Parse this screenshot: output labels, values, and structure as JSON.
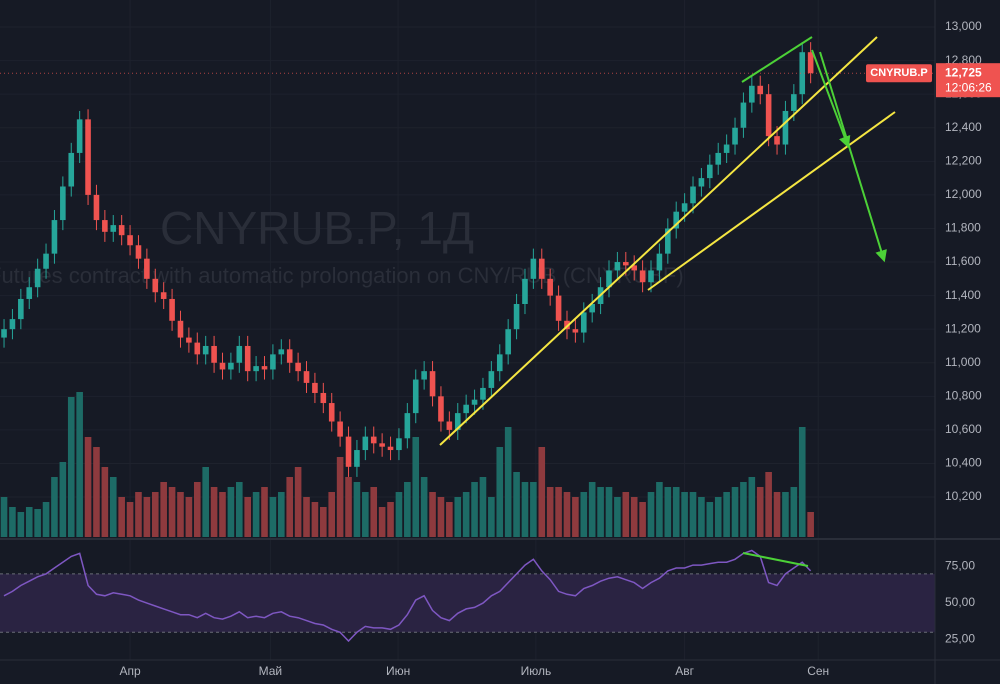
{
  "chart_data": [
    {
      "type": "candlestick",
      "title": "CNYRUB.P, 1Д",
      "subtitle": "Futures contract with automatic prolongation on CNY/RUB (CNYRUBF)",
      "symbol": "CNYRUB.P",
      "last_price": {
        "value": 12725,
        "label": "12,725"
      },
      "countdown": "12:06:26",
      "up_color": "#26a69a",
      "down_color": "#ef5350",
      "volume_up_color": "#1d6b66",
      "volume_down_color": "#8e3a3e",
      "open": [
        11150,
        11200,
        11260,
        11380,
        11450,
        11560,
        11650,
        11850,
        12050,
        12250,
        12450,
        12000,
        11850,
        11780,
        11820,
        11760,
        11700,
        11620,
        11500,
        11420,
        11380,
        11250,
        11150,
        11120,
        11050,
        11100,
        11000,
        10960,
        11000,
        11100,
        10950,
        10980,
        10960,
        11050,
        11080,
        11000,
        10950,
        10880,
        10820,
        10760,
        10650,
        10560,
        10380,
        10480,
        10560,
        10520,
        10500,
        10480,
        10550,
        10700,
        10900,
        10950,
        10800,
        10650,
        10600,
        10700,
        10750,
        10780,
        10850,
        10950,
        11050,
        11200,
        11350,
        11500,
        11620,
        11500,
        11400,
        11250,
        11200,
        11180,
        11300,
        11350,
        11450,
        11550,
        11600,
        11580,
        11550,
        11480,
        11550,
        11650,
        11800,
        11900,
        11950,
        12050,
        12100,
        12180,
        12250,
        12300,
        12400,
        12550,
        12650,
        12600,
        12350,
        12300,
        12500,
        12600,
        12850
      ],
      "high": [
        11260,
        11320,
        11440,
        11510,
        11620,
        11710,
        11910,
        12110,
        12310,
        12500,
        12510,
        12060,
        11910,
        11880,
        11880,
        11820,
        11760,
        11680,
        11560,
        11480,
        11440,
        11310,
        11210,
        11180,
        11160,
        11160,
        11060,
        11060,
        11160,
        11160,
        11040,
        11040,
        11110,
        11140,
        11140,
        11060,
        11010,
        10940,
        10880,
        10820,
        10710,
        10620,
        10540,
        10620,
        10620,
        10580,
        10560,
        10610,
        10760,
        10960,
        11010,
        11010,
        10860,
        10710,
        10760,
        10810,
        10840,
        10910,
        11010,
        11110,
        11260,
        11410,
        11560,
        11680,
        11680,
        11560,
        11460,
        11310,
        11260,
        11360,
        11410,
        11510,
        11610,
        11660,
        11660,
        11640,
        11610,
        11610,
        11710,
        11860,
        11960,
        12010,
        12110,
        12160,
        12240,
        12310,
        12360,
        12460,
        12610,
        12710,
        12710,
        12660,
        12410,
        12560,
        12660,
        12910,
        12910
      ],
      "low": [
        11090,
        11140,
        11200,
        11320,
        11390,
        11500,
        11590,
        11790,
        11990,
        12190,
        11940,
        11790,
        11720,
        11720,
        11700,
        11640,
        11560,
        11440,
        11360,
        11320,
        11190,
        11090,
        11060,
        10990,
        10990,
        10940,
        10900,
        10900,
        10940,
        10890,
        10890,
        10900,
        10900,
        10990,
        10940,
        10890,
        10820,
        10760,
        10700,
        10590,
        10500,
        10320,
        10320,
        10420,
        10460,
        10440,
        10420,
        10420,
        10490,
        10640,
        10840,
        10740,
        10590,
        10540,
        10540,
        10640,
        10690,
        10720,
        10790,
        10890,
        10990,
        11140,
        11290,
        11440,
        11440,
        11340,
        11190,
        11140,
        11120,
        11120,
        11240,
        11290,
        11390,
        11490,
        11520,
        11490,
        11420,
        11420,
        11490,
        11590,
        11740,
        11840,
        11890,
        11990,
        12040,
        12120,
        12190,
        12240,
        12340,
        12490,
        12540,
        12290,
        12240,
        12240,
        12440,
        12540,
        12665
      ],
      "close": [
        11200,
        11260,
        11380,
        11450,
        11560,
        11650,
        11850,
        12050,
        12250,
        12450,
        12000,
        11850,
        11780,
        11820,
        11760,
        11700,
        11620,
        11500,
        11420,
        11380,
        11250,
        11150,
        11120,
        11050,
        11100,
        11000,
        10960,
        11000,
        11100,
        10950,
        10980,
        10960,
        11050,
        11080,
        11000,
        10950,
        10880,
        10820,
        10760,
        10650,
        10560,
        10380,
        10480,
        10560,
        10520,
        10500,
        10480,
        10550,
        10700,
        10900,
        10950,
        10800,
        10650,
        10600,
        10700,
        10750,
        10780,
        10850,
        10950,
        11050,
        11200,
        11350,
        11500,
        11620,
        11500,
        11400,
        11250,
        11200,
        11180,
        11300,
        11350,
        11450,
        11550,
        11600,
        11580,
        11550,
        11480,
        11550,
        11650,
        11800,
        11900,
        11950,
        12050,
        12100,
        12180,
        12250,
        12300,
        12400,
        12550,
        12650,
        12600,
        12350,
        12300,
        12500,
        12600,
        12850,
        12725
      ],
      "volume": [
        40,
        30,
        25,
        30,
        28,
        35,
        60,
        75,
        140,
        145,
        100,
        90,
        70,
        60,
        40,
        35,
        45,
        40,
        45,
        55,
        50,
        45,
        40,
        55,
        70,
        50,
        45,
        50,
        55,
        40,
        45,
        50,
        40,
        45,
        60,
        70,
        40,
        35,
        30,
        45,
        80,
        60,
        55,
        45,
        50,
        30,
        35,
        45,
        55,
        100,
        60,
        45,
        40,
        35,
        40,
        45,
        55,
        60,
        40,
        90,
        110,
        65,
        55,
        55,
        90,
        50,
        50,
        45,
        40,
        45,
        55,
        50,
        50,
        40,
        45,
        40,
        35,
        45,
        55,
        50,
        50,
        45,
        45,
        40,
        35,
        40,
        45,
        50,
        55,
        60,
        50,
        65,
        45,
        45,
        50,
        110,
        25
      ],
      "xlim": [
        -0.48,
        110.8
      ],
      "xticks": [
        {
          "value": 15,
          "label": "Апр"
        },
        {
          "value": 31.7,
          "label": "Май"
        },
        {
          "value": 46.9,
          "label": "Июн"
        },
        {
          "value": 63.3,
          "label": "Июль"
        },
        {
          "value": 81,
          "label": "Авг"
        },
        {
          "value": 96.9,
          "label": "Сен"
        }
      ],
      "ylim": [
        9962,
        13161
      ],
      "yticks": [
        {
          "value": 10200,
          "label": "10,200"
        },
        {
          "value": 10400,
          "label": "10,400"
        },
        {
          "value": 10600,
          "label": "10,600"
        },
        {
          "value": 10800,
          "label": "10,800"
        },
        {
          "value": 11000,
          "label": "11,000"
        },
        {
          "value": 11200,
          "label": "11,200"
        },
        {
          "value": 11400,
          "label": "11,400"
        },
        {
          "value": 11600,
          "label": "11,600"
        },
        {
          "value": 11800,
          "label": "11,800"
        },
        {
          "value": 12000,
          "label": "12,000"
        },
        {
          "value": 12200,
          "label": "12,200"
        },
        {
          "value": 12400,
          "label": "12,400"
        },
        {
          "value": 12600,
          "label": "12,600"
        },
        {
          "value": 12800,
          "label": "12,800"
        },
        {
          "value": 13000,
          "label": "13,000"
        }
      ]
    },
    {
      "type": "line",
      "color": "#7e57c2",
      "band": [
        30,
        70
      ],
      "values": [
        55,
        58,
        62,
        65,
        68,
        70,
        74,
        78,
        82,
        84,
        62,
        56,
        55,
        57,
        56,
        55,
        52,
        50,
        48,
        46,
        44,
        42,
        42,
        40,
        43,
        40,
        39,
        41,
        44,
        40,
        41,
        40,
        43,
        44,
        41,
        40,
        38,
        36,
        35,
        32,
        30,
        24,
        30,
        34,
        33,
        33,
        32,
        35,
        42,
        52,
        55,
        45,
        40,
        38,
        43,
        46,
        47,
        50,
        55,
        58,
        64,
        70,
        76,
        80,
        72,
        66,
        58,
        56,
        55,
        60,
        62,
        65,
        67,
        68,
        66,
        64,
        60,
        64,
        67,
        72,
        74,
        74,
        76,
        76,
        77,
        78,
        78,
        80,
        84,
        86,
        82,
        64,
        62,
        70,
        74,
        78,
        72
      ],
      "ylim": [
        11,
        93.2
      ],
      "yticks": [
        {
          "value": 25,
          "label": "25,00"
        },
        {
          "value": 50,
          "label": "50,00"
        },
        {
          "value": 75,
          "label": "75,00"
        }
      ]
    }
  ]
}
